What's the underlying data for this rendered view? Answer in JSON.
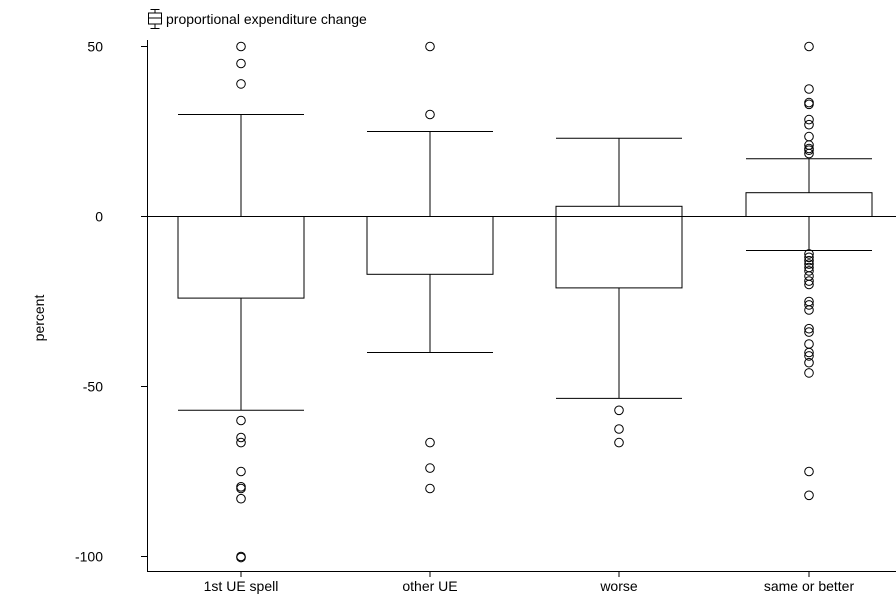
{
  "chart_data": {
    "type": "box",
    "legend": {
      "label": "proportional expenditure change",
      "placement": "top-left"
    },
    "ylabel": "percent",
    "ylim": [
      -105,
      52
    ],
    "yticks": [
      50,
      0,
      -50,
      -100
    ],
    "reference_line": 0,
    "grid": false,
    "categories": [
      "1st UE spell",
      "other UE",
      "worse",
      "same or better"
    ],
    "boxes": [
      {
        "category": "1st UE spell",
        "whisker_high": 30,
        "q3": 0,
        "median": 0,
        "q1": -24,
        "whisker_low": -57,
        "outliers": [
          50,
          45,
          39,
          -60,
          -65,
          -66.5,
          -75,
          -79.5,
          -80,
          -83,
          -100,
          -100.3
        ]
      },
      {
        "category": "other UE",
        "whisker_high": 25,
        "q3": 0,
        "median": 0,
        "q1": -17,
        "whisker_low": -40,
        "outliers": [
          50,
          30,
          -66.5,
          -74,
          -80
        ]
      },
      {
        "category": "worse",
        "whisker_high": 23,
        "q3": 3,
        "median": 0,
        "q1": -21,
        "whisker_low": -53.5,
        "outliers": [
          -57,
          -62.5,
          -66.5
        ]
      },
      {
        "category": "same or better",
        "whisker_high": 17,
        "q3": 7,
        "median": 0,
        "q1": 0,
        "whisker_low": -10,
        "outliers": [
          50,
          37.5,
          33.5,
          33,
          28.5,
          27,
          23.5,
          21,
          20,
          19.5,
          18.5,
          -11,
          -12,
          -13,
          -14,
          -15,
          -16,
          -17.5,
          -19,
          -20,
          -25,
          -26,
          -27.5,
          -33,
          -34,
          -37.5,
          -40,
          -41,
          -43,
          -46,
          -75,
          -82
        ]
      }
    ]
  }
}
